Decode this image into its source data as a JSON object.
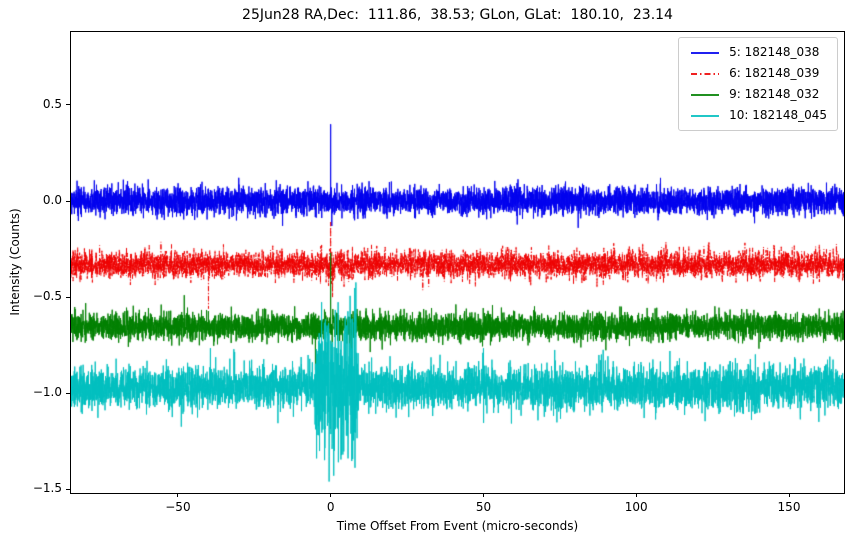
{
  "chart_data": {
    "type": "line",
    "title": "25Jun28 RA,Dec:  111.86,  38.53; GLon, GLat:  180.10,  23.14",
    "xlabel": "Time Offset From Event (micro-seconds)",
    "ylabel": "Intensity (Counts)",
    "xlim": [
      -85,
      168
    ],
    "ylim": [
      -1.52,
      0.88
    ],
    "grid": false,
    "legend_position": "upper right",
    "n_points": 6000,
    "xticks": {
      "values": [
        -50,
        0,
        50,
        100,
        150
      ],
      "labels": [
        "−50",
        "0",
        "50",
        "100",
        "150"
      ]
    },
    "yticks": {
      "values": [
        -1.5,
        -1.0,
        -0.5,
        0.0,
        0.5
      ],
      "labels": [
        "−1.5",
        "−1.0",
        "−0.5",
        "0.0",
        "0.5"
      ]
    },
    "series": [
      {
        "name": "5: 182148_038",
        "color": "#0000ee",
        "linestyle": "solid",
        "baseline": 0.0,
        "noise_sigma": 0.035,
        "spikes": [
          {
            "x": 0,
            "y": 0.4
          },
          {
            "x": 0.35,
            "y": -0.13
          }
        ],
        "bursts": []
      },
      {
        "name": "6: 182148_039",
        "color": "#ee0000",
        "linestyle": "dashdot",
        "baseline": -0.33,
        "noise_sigma": 0.035,
        "spikes": [
          {
            "x": 0,
            "y": -0.11
          },
          {
            "x": 0.6,
            "y": -0.5
          },
          {
            "x": -40,
            "y": -0.56
          }
        ],
        "bursts": []
      },
      {
        "name": "9: 182148_032",
        "color": "#008000",
        "linestyle": "solid",
        "baseline": -0.655,
        "noise_sigma": 0.035,
        "spikes": [
          {
            "x": 0,
            "y": -0.27
          },
          {
            "x": 0.5,
            "y": -0.92
          },
          {
            "x": -5,
            "y": -0.88
          }
        ],
        "bursts": []
      },
      {
        "name": "10: 182148_045",
        "color": "#00bfbf",
        "linestyle": "solid",
        "baseline": -0.97,
        "noise_sigma": 0.055,
        "spikes": [
          {
            "x": -3.5,
            "y": -0.74
          },
          {
            "x": -3,
            "y": -0.7
          },
          {
            "x": 1.0,
            "y": -1.43
          },
          {
            "x": 1.2,
            "y": -1.3
          },
          {
            "x": 2.5,
            "y": -1.36
          },
          {
            "x": 4.0,
            "y": -1.32
          }
        ],
        "bursts": [
          {
            "x_start": -5,
            "x_end": 9,
            "sigma_scale": 3.2
          }
        ]
      }
    ]
  }
}
